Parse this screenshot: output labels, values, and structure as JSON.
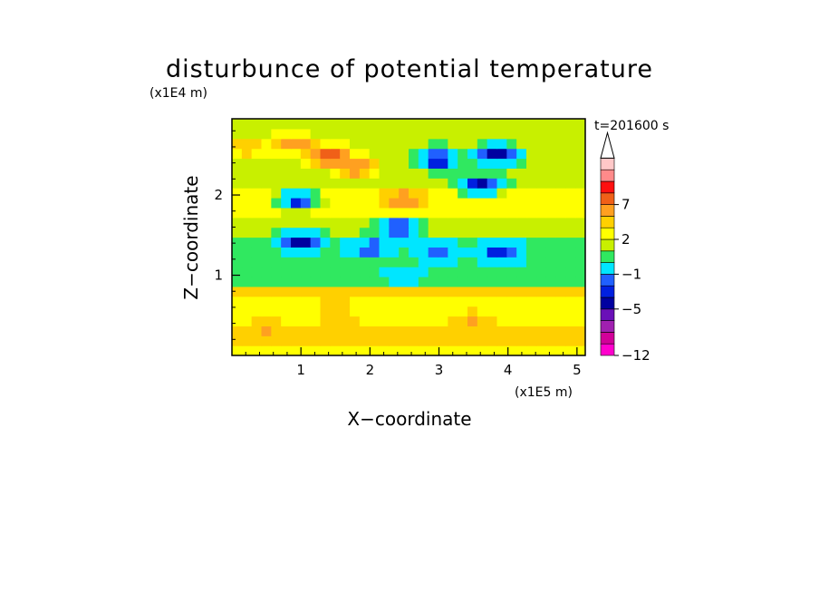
{
  "chart_data": {
    "type": "heatmap",
    "title": "disturbunce of potential temperature",
    "xlabel": "X−coordinate",
    "ylabel": "Z−coordinate",
    "x_unit": "(x1E5 m)",
    "y_unit": "(x1E4 m)",
    "time_label": "t=201600 s",
    "xlim": [
      0,
      5.12
    ],
    "ylim": [
      0,
      2.95
    ],
    "x_ticks": [
      "1",
      "2",
      "3",
      "4",
      "5"
    ],
    "y_ticks": [
      "1",
      "2"
    ],
    "colorbar": {
      "levels": [
        -12,
        -11,
        -9,
        -7,
        -5,
        -4,
        -3,
        -1,
        0,
        1,
        2,
        3,
        5,
        7,
        9,
        11
      ],
      "tick_labels": [
        "−12",
        "−5",
        "−1",
        "2",
        "7"
      ],
      "colors": [
        "#ff00cc",
        "#d20099",
        "#a020b0",
        "#6a10b8",
        "#0000a0",
        "#0020e0",
        "#2060ff",
        "#00e6ff",
        "#30e860",
        "#c8f000",
        "#ffff00",
        "#ffd000",
        "#ffa020",
        "#f06018",
        "#ff1010",
        "#ff8a8a",
        "#ffc8c8"
      ],
      "extend": "max"
    },
    "features": [
      {
        "x": 1.4,
        "z": 2.5,
        "value": 6
      },
      {
        "x": 1.8,
        "z": 2.35,
        "value": 5
      },
      {
        "x": 0.9,
        "z": 2.65,
        "value": 4
      },
      {
        "x": 0.2,
        "z": 2.6,
        "value": 3
      },
      {
        "x": 2.5,
        "z": 1.95,
        "value": 4
      },
      {
        "x": 2.4,
        "z": 1.6,
        "value": -5
      },
      {
        "x": 0.95,
        "z": 1.95,
        "value": -5
      },
      {
        "x": 1.0,
        "z": 1.45,
        "value": -5
      },
      {
        "x": 3.0,
        "z": 2.45,
        "value": -6
      },
      {
        "x": 3.85,
        "z": 2.5,
        "value": -7
      },
      {
        "x": 3.6,
        "z": 2.1,
        "value": -5
      },
      {
        "x": 3.9,
        "z": 1.3,
        "value": -5
      },
      {
        "x": 3.0,
        "z": 1.3,
        "value": -4
      },
      {
        "x": 2.0,
        "z": 1.35,
        "value": -4
      },
      {
        "x": 2.5,
        "z": 1.0,
        "value": -2
      },
      {
        "x": 1.5,
        "z": 0.5,
        "value": 3
      },
      {
        "x": 3.5,
        "z": 0.45,
        "value": 3
      },
      {
        "x": 0.5,
        "z": 0.35,
        "value": 3
      },
      {
        "x": 4.6,
        "z": 0.3,
        "value": 3
      },
      {
        "x": 4.5,
        "z": 1.8,
        "value": 2
      }
    ]
  }
}
